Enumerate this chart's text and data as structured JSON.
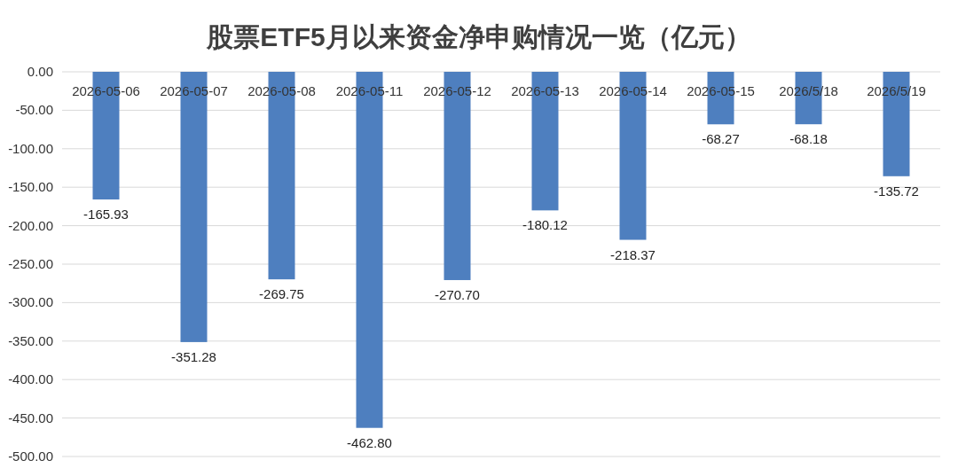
{
  "chart_data": {
    "type": "bar",
    "title": "股票ETF5月以来资金净申购情况一览（亿元）",
    "categories": [
      "2026-05-06",
      "2026-05-07",
      "2026-05-08",
      "2026-05-11",
      "2026-05-12",
      "2026-05-13",
      "2026-05-14",
      "2026-05-15",
      "2026/5/18",
      "2026/5/19"
    ],
    "values": [
      -165.93,
      -351.28,
      -269.75,
      -462.8,
      -270.7,
      -180.12,
      -218.37,
      -68.27,
      -68.18,
      -135.72
    ],
    "value_labels": [
      "-165.93",
      "-351.28",
      "-269.75",
      "-462.80",
      "-270.70",
      "-180.12",
      "-218.37",
      "-68.27",
      "-68.18",
      "-135.72"
    ],
    "color": "#4e7fbf",
    "grid": "y",
    "ylim": [
      -500,
      0
    ],
    "yticks": [
      {
        "value": 0,
        "label": "0.00"
      },
      {
        "value": -50,
        "label": "-50.00"
      },
      {
        "value": -100,
        "label": "-100.00"
      },
      {
        "value": -150,
        "label": "-150.00"
      },
      {
        "value": -200,
        "label": "-200.00"
      },
      {
        "value": -250,
        "label": "-250.00"
      },
      {
        "value": -300,
        "label": "-300.00"
      },
      {
        "value": -350,
        "label": "-350.00"
      },
      {
        "value": -400,
        "label": "-400.00"
      },
      {
        "value": -450,
        "label": "-450.00"
      },
      {
        "value": -500,
        "label": "-500.00"
      }
    ]
  }
}
